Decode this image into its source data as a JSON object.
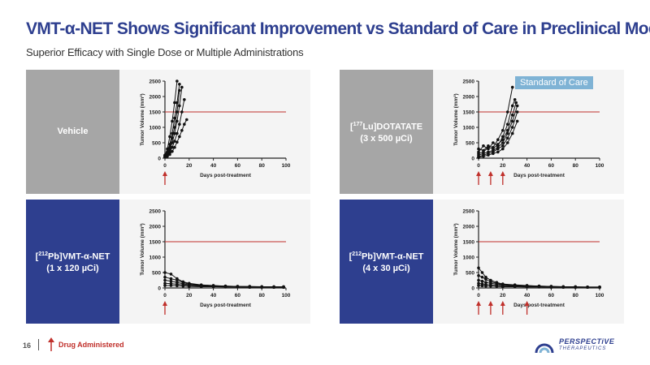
{
  "title": "VMT-α-NET Shows Significant Improvement vs Standard of Care in Preclinical Models",
  "subtitle": "Superior Efficacy with Single Dose or Multiple Administrations",
  "standard_of_care_label": "Standard of Care",
  "footer": {
    "page_number": "16",
    "legend_label": "Drug Administered"
  },
  "logo": {
    "name": "PERSPECTiVE",
    "sub": "THERAPEUTICS"
  },
  "colors": {
    "title": "#2e3f8f",
    "threshold_line": "#c0302b",
    "arrow": "#c0302b",
    "gray_panel": "#a6a6a6",
    "blue_panel": "#2e3f8f",
    "badge": "#7fb3d5"
  },
  "chart_data": [
    {
      "type": "line",
      "label": "Vehicle",
      "label_sup": "",
      "label_line2": "",
      "xlabel": "Days post-treatment",
      "ylabel": "Tumor Volume (mm³)",
      "xlim": [
        0,
        100
      ],
      "ylim": [
        0,
        2500
      ],
      "xticks": [
        0,
        20,
        40,
        60,
        80,
        100
      ],
      "yticks": [
        0,
        500,
        1000,
        1500,
        2000,
        2500
      ],
      "threshold": 1500,
      "dose_days": [
        0
      ],
      "series": [
        {
          "x": [
            0,
            2,
            4,
            6,
            8,
            10
          ],
          "y": [
            100,
            300,
            700,
            1200,
            1800,
            2500
          ]
        },
        {
          "x": [
            0,
            2,
            4,
            6,
            8,
            10,
            12
          ],
          "y": [
            80,
            200,
            450,
            800,
            1300,
            1800,
            2400
          ]
        },
        {
          "x": [
            0,
            2,
            4,
            6,
            8,
            10,
            12
          ],
          "y": [
            60,
            150,
            350,
            650,
            1000,
            1500,
            2200
          ]
        },
        {
          "x": [
            0,
            2,
            4,
            6,
            8,
            10,
            12,
            14
          ],
          "y": [
            50,
            120,
            280,
            500,
            800,
            1200,
            1700,
            2300
          ]
        },
        {
          "x": [
            0,
            2,
            4,
            6,
            8,
            10,
            12,
            14,
            16
          ],
          "y": [
            40,
            90,
            200,
            350,
            550,
            800,
            1100,
            1500,
            1900
          ]
        },
        {
          "x": [
            0,
            2,
            4,
            6,
            8,
            10,
            12,
            14,
            16,
            18
          ],
          "y": [
            30,
            60,
            120,
            220,
            350,
            520,
            700,
            900,
            1100,
            1250
          ]
        }
      ]
    },
    {
      "type": "line",
      "label": "Lu]DOTATATE",
      "label_sup": "177",
      "label_line2": "(3 x 500 µCi)",
      "xlabel": "Days post-treatment",
      "ylabel": "Tumor Volume (mm³)",
      "xlim": [
        0,
        100
      ],
      "ylim": [
        0,
        2500
      ],
      "xticks": [
        0,
        20,
        40,
        60,
        80,
        100
      ],
      "yticks": [
        0,
        500,
        1000,
        1500,
        2000,
        2500
      ],
      "threshold": 1500,
      "dose_days": [
        0,
        10,
        20
      ],
      "series": [
        {
          "x": [
            0,
            4,
            8,
            12,
            16,
            20,
            24,
            28
          ],
          "y": [
            300,
            250,
            400,
            350,
            600,
            900,
            1500,
            2300
          ]
        },
        {
          "x": [
            0,
            4,
            8,
            12,
            16,
            20,
            24,
            28,
            30
          ],
          "y": [
            200,
            400,
            300,
            500,
            400,
            700,
            1100,
            1700,
            1900
          ]
        },
        {
          "x": [
            0,
            4,
            8,
            12,
            16,
            20,
            24,
            28,
            31
          ],
          "y": [
            150,
            200,
            350,
            300,
            450,
            600,
            900,
            1400,
            1800
          ]
        },
        {
          "x": [
            0,
            4,
            8,
            12,
            16,
            20,
            24,
            28,
            32
          ],
          "y": [
            100,
            150,
            200,
            250,
            350,
            500,
            800,
            1200,
            1700
          ]
        },
        {
          "x": [
            0,
            4,
            8,
            12,
            16,
            20,
            24,
            28,
            32
          ],
          "y": [
            50,
            100,
            150,
            200,
            300,
            400,
            650,
            1000,
            1500
          ]
        },
        {
          "x": [
            0,
            4,
            8,
            12,
            16,
            20,
            24,
            28,
            32
          ],
          "y": [
            20,
            60,
            100,
            150,
            200,
            300,
            500,
            800,
            1200
          ]
        }
      ]
    },
    {
      "type": "line",
      "label": "Pb]VMT-α-NET",
      "label_sup": "212",
      "label_line2": "(1 x 120 µCi)",
      "xlabel": "Days post-treatment",
      "ylabel": "Tumor Volume (mm³)",
      "xlim": [
        0,
        100
      ],
      "ylim": [
        0,
        2500
      ],
      "xticks": [
        0,
        20,
        40,
        60,
        80,
        100
      ],
      "yticks": [
        0,
        500,
        1000,
        1500,
        2000,
        2500
      ],
      "threshold": 1500,
      "dose_days": [
        0
      ],
      "series": [
        {
          "x": [
            0,
            5,
            10,
            15,
            20,
            30,
            40,
            50,
            60,
            70,
            80,
            90,
            98
          ],
          "y": [
            500,
            450,
            300,
            200,
            150,
            100,
            80,
            60,
            50,
            50,
            40,
            40,
            40
          ]
        },
        {
          "x": [
            0,
            5,
            10,
            15,
            20,
            30,
            40,
            50,
            60,
            70,
            80,
            90,
            98
          ],
          "y": [
            350,
            300,
            250,
            180,
            120,
            90,
            70,
            60,
            50,
            40,
            40,
            30,
            30
          ]
        },
        {
          "x": [
            0,
            5,
            10,
            15,
            20,
            30,
            40,
            50,
            60,
            70,
            80,
            90,
            98
          ],
          "y": [
            250,
            220,
            180,
            140,
            100,
            80,
            60,
            50,
            40,
            40,
            30,
            30,
            30
          ]
        },
        {
          "x": [
            0,
            5,
            10,
            15,
            20,
            30,
            40,
            50,
            60,
            70,
            80,
            90,
            98
          ],
          "y": [
            150,
            140,
            120,
            100,
            80,
            60,
            50,
            40,
            30,
            30,
            30,
            20,
            20
          ]
        },
        {
          "x": [
            0,
            5,
            10,
            15,
            20,
            30,
            40,
            50,
            60,
            70,
            80,
            90,
            98
          ],
          "y": [
            80,
            80,
            70,
            60,
            50,
            40,
            40,
            30,
            30,
            20,
            20,
            20,
            20
          ]
        }
      ]
    },
    {
      "type": "line",
      "label": "Pb]VMT-α-NET",
      "label_sup": "212",
      "label_line2": "(4 x 30 µCi)",
      "xlabel": "Days post-treatment",
      "ylabel": "Tumor Volume (mm³)",
      "xlim": [
        0,
        100
      ],
      "ylim": [
        0,
        2500
      ],
      "xticks": [
        0,
        20,
        40,
        60,
        80,
        100
      ],
      "yticks": [
        0,
        500,
        1000,
        1500,
        2000,
        2500
      ],
      "threshold": 1500,
      "dose_days": [
        0,
        10,
        20,
        40
      ],
      "series": [
        {
          "x": [
            0,
            3,
            6,
            10,
            15,
            20,
            30,
            40,
            50,
            60,
            70,
            80,
            90,
            100
          ],
          "y": [
            650,
            500,
            350,
            250,
            180,
            130,
            100,
            80,
            60,
            50,
            40,
            40,
            30,
            30
          ]
        },
        {
          "x": [
            0,
            3,
            6,
            10,
            15,
            20,
            30,
            40,
            50,
            60,
            70,
            80,
            90,
            100
          ],
          "y": [
            400,
            350,
            280,
            200,
            150,
            110,
            90,
            70,
            60,
            50,
            40,
            30,
            30,
            30
          ]
        },
        {
          "x": [
            0,
            3,
            6,
            10,
            15,
            20,
            30,
            40,
            50,
            60,
            70,
            80,
            90,
            100
          ],
          "y": [
            250,
            220,
            180,
            150,
            120,
            90,
            70,
            60,
            50,
            40,
            30,
            30,
            20,
            20
          ]
        },
        {
          "x": [
            0,
            3,
            6,
            10,
            15,
            20,
            30,
            40,
            50,
            60,
            70,
            80,
            90,
            100
          ],
          "y": [
            150,
            130,
            110,
            100,
            80,
            70,
            60,
            50,
            40,
            30,
            30,
            20,
            20,
            20
          ]
        },
        {
          "x": [
            0,
            3,
            6,
            10,
            15,
            20,
            30,
            40,
            50,
            60,
            70,
            80,
            90,
            100
          ],
          "y": [
            80,
            70,
            60,
            60,
            50,
            40,
            40,
            30,
            30,
            20,
            20,
            20,
            20,
            20
          ]
        }
      ]
    }
  ]
}
